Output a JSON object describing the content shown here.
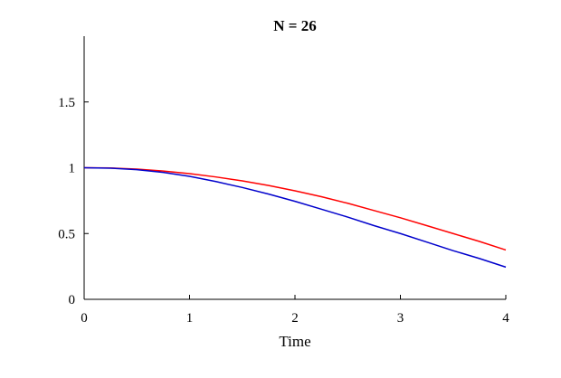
{
  "chart_data": {
    "type": "line",
    "title": "N = 26",
    "xlabel": "Time",
    "ylabel": "",
    "xlim": [
      0,
      4
    ],
    "ylim": [
      0,
      2
    ],
    "xticks": [
      0,
      1,
      2,
      3,
      4
    ],
    "xtick_labels": [
      "0",
      "1",
      "2",
      "3",
      "4"
    ],
    "yticks": [
      0,
      0.5,
      1,
      1.5
    ],
    "ytick_labels": [
      "0",
      "0.5",
      "1",
      "1.5"
    ],
    "grid": false,
    "legend": "none",
    "series": [
      {
        "color": "#ff0000",
        "x": [
          0,
          0.25,
          0.5,
          0.75,
          1.0,
          1.25,
          1.5,
          1.75,
          2.0,
          2.25,
          2.5,
          2.75,
          3.0,
          3.25,
          3.5,
          3.75,
          4.0
        ],
        "y": [
          1.0,
          0.998,
          0.99,
          0.975,
          0.955,
          0.93,
          0.9,
          0.865,
          0.825,
          0.78,
          0.73,
          0.675,
          0.62,
          0.56,
          0.5,
          0.44,
          0.375
        ]
      },
      {
        "color": "#0000cc",
        "x": [
          0,
          0.25,
          0.5,
          0.75,
          1.0,
          1.25,
          1.5,
          1.75,
          2.0,
          2.25,
          2.5,
          2.75,
          3.0,
          3.25,
          3.5,
          3.75,
          4.0
        ],
        "y": [
          1.0,
          0.997,
          0.985,
          0.965,
          0.935,
          0.895,
          0.85,
          0.8,
          0.745,
          0.685,
          0.625,
          0.56,
          0.5,
          0.435,
          0.37,
          0.31,
          0.245
        ]
      }
    ]
  }
}
